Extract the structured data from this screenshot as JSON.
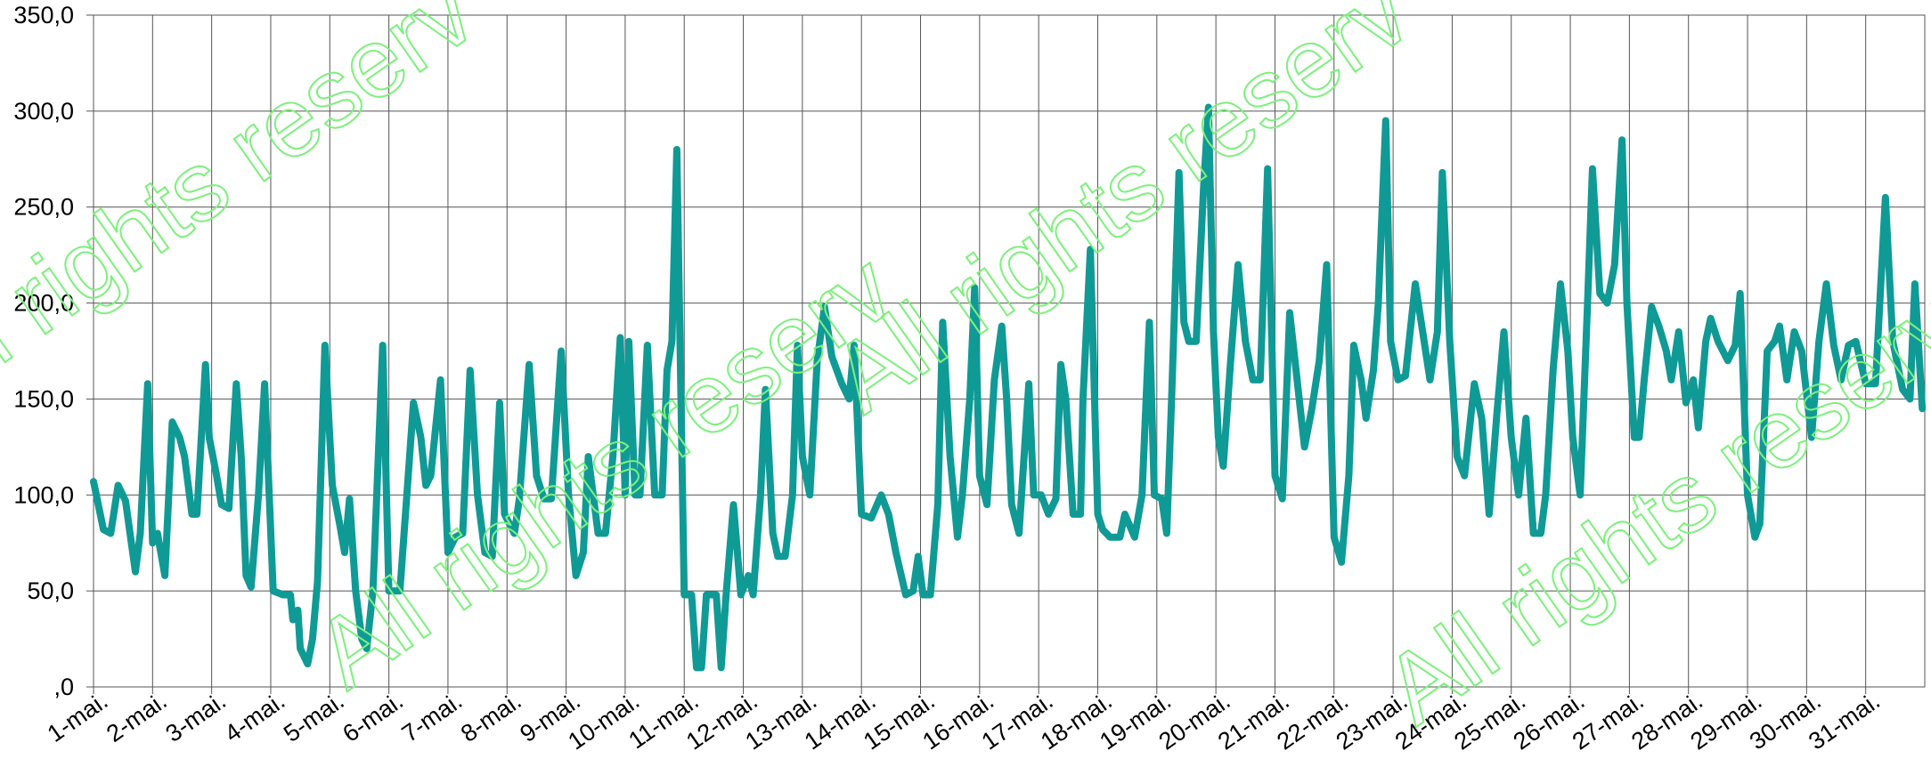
{
  "chart_data": {
    "type": "line",
    "watermark": "All rights reserv",
    "x": [
      0,
      4,
      7,
      10,
      13,
      17,
      19,
      22,
      24,
      26,
      29,
      32,
      35,
      37,
      40,
      42,
      45.5,
      47,
      50,
      52,
      55,
      58,
      60,
      62,
      64,
      67,
      69.5,
      73,
      77,
      80,
      81,
      83,
      84,
      87,
      89,
      91,
      94,
      97,
      100,
      102,
      104,
      106.5,
      109,
      111,
      113.5,
      117.5,
      120,
      124.5,
      127,
      130,
      133,
      135,
      137,
      141,
      144,
      147,
      150,
      153,
      156,
      159,
      162,
      165,
      167,
      171,
      173,
      177,
      180,
      183,
      186,
      190,
      193,
      196,
      199,
      201,
      205,
      208,
      211,
      214,
      216,
      217.5,
      220,
      222,
      225,
      228,
      231,
      233,
      235,
      237,
      240,
      243,
      245,
      247,
      249,
      253,
      255,
      257,
      260,
      263,
      266,
      268,
      271,
      273,
      276,
      278,
      281,
      284,
      286,
      288,
      291,
      294,
      297,
      300,
      304,
      307,
      309,
      312,
      316,
      320,
      323,
      326,
      330,
      333,
      335,
      337,
      340,
      343,
      345,
      348,
      351,
      353,
      356,
      358,
      360,
      363,
      366,
      369,
      371,
      373,
      376,
      380,
      382,
      385,
      388,
      391,
      393,
      395,
      398,
      401,
      402,
      405,
      408,
      410,
      413,
      417,
      419,
      423,
      426,
      429,
      431,
      434,
      436,
      438,
      441,
      443,
      445,
      448,
      451,
      453,
      455,
      457,
      459,
      462,
      465,
      468,
      471,
      474,
      477,
      480,
      483,
      486,
      489,
      492,
      495,
      498,
      501,
      504,
      507,
      510,
      512,
      515,
      517,
      520,
      522,
      525,
      527,
      530,
      533,
      537,
      540,
      543,
      546,
      548,
      551,
      554,
      557,
      561,
      564,
      567,
      570,
      573,
      576,
      579,
      582,
      585,
      588,
      590,
      593,
      596,
      599,
      601,
      604,
      607,
      609,
      612,
      615,
      618,
      621,
      623,
      626,
      628,
      630,
      633,
      636,
      639,
      641,
      644,
      647,
      650,
      652,
      655,
      657,
      660,
      664,
      667,
      669,
      672,
      675,
      677,
      680,
      683,
      685,
      688,
      691,
      694,
      698,
      701,
      704,
      707,
      710,
      713,
      716,
      720,
      724,
      728,
      731,
      735,
      738,
      740,
      743
    ],
    "series": [
      {
        "color": "#109a96",
        "values": [
          107,
          82,
          80,
          105,
          97,
          60,
          80,
          158,
          75,
          80,
          58,
          138,
          130,
          120,
          90,
          90,
          168,
          130,
          110,
          95,
          93,
          158,
          120,
          58,
          52,
          100,
          158,
          50,
          48,
          48,
          35,
          40,
          20,
          12,
          25,
          55,
          178,
          105,
          85,
          70,
          98,
          50,
          25,
          20,
          50,
          178,
          50,
          50,
          95,
          148,
          130,
          105,
          110,
          160,
          70,
          78,
          80,
          165,
          100,
          70,
          68,
          148,
          90,
          80,
          98,
          168,
          110,
          98,
          98,
          175,
          100,
          58,
          70,
          120,
          80,
          80,
          120,
          182,
          100,
          180,
          100,
          100,
          178,
          100,
          100,
          165,
          180,
          280,
          48,
          48,
          10,
          10,
          48,
          48,
          10,
          48,
          95,
          48,
          58,
          48,
          100,
          155,
          80,
          68,
          68,
          100,
          178,
          120,
          100,
          170,
          198,
          172,
          158,
          150,
          178,
          90,
          88,
          100,
          90,
          70,
          48,
          50,
          68,
          48,
          48,
          95,
          190,
          120,
          78,
          100,
          150,
          208,
          110,
          95,
          160,
          188,
          150,
          95,
          80,
          158,
          100,
          100,
          90,
          98,
          168,
          150,
          90,
          90,
          150,
          228,
          90,
          82,
          78,
          78,
          90,
          78,
          100,
          190,
          100,
          98,
          80,
          150,
          268,
          190,
          180,
          180,
          260,
          302,
          185,
          130,
          115,
          170,
          220,
          180,
          160,
          160,
          270,
          110,
          98,
          195,
          160,
          125,
          145,
          170,
          220,
          78,
          65,
          110,
          178,
          160,
          140,
          165,
          200,
          295,
          180,
          160,
          162,
          210,
          185,
          160,
          185,
          268,
          180,
          120,
          110,
          158,
          140,
          90,
          140,
          185,
          130,
          100,
          140,
          80,
          80,
          100,
          165,
          210,
          175,
          130,
          100,
          200,
          270,
          205,
          200,
          220,
          285,
          200,
          130,
          130,
          160,
          198,
          188,
          175,
          160,
          185,
          148,
          160,
          135,
          180,
          192,
          180,
          170,
          178,
          205,
          100,
          78,
          85,
          175,
          180,
          188,
          160,
          185,
          175,
          130,
          180,
          210,
          178,
          160,
          178,
          180,
          158,
          158,
          255,
          180,
          155,
          150,
          210,
          145
        ]
      }
    ],
    "xlim": [
      0,
      744
    ],
    "xticks": [
      {
        "value": 0,
        "label": "1-mai."
      },
      {
        "value": 24,
        "label": "2-mai."
      },
      {
        "value": 48,
        "label": "3-mai."
      },
      {
        "value": 72,
        "label": "4-mai."
      },
      {
        "value": 96,
        "label": "5-mai."
      },
      {
        "value": 120,
        "label": "6-mai."
      },
      {
        "value": 144,
        "label": "7-mai."
      },
      {
        "value": 168,
        "label": "8-mai."
      },
      {
        "value": 192,
        "label": "9-mai."
      },
      {
        "value": 216,
        "label": "10-mai."
      },
      {
        "value": 240,
        "label": "11-mai."
      },
      {
        "value": 264,
        "label": "12-mai."
      },
      {
        "value": 288,
        "label": "13-mai."
      },
      {
        "value": 312,
        "label": "14-mai."
      },
      {
        "value": 336,
        "label": "15-mai."
      },
      {
        "value": 360,
        "label": "16-mai."
      },
      {
        "value": 384,
        "label": "17-mai."
      },
      {
        "value": 408,
        "label": "18-mai."
      },
      {
        "value": 432,
        "label": "19-mai."
      },
      {
        "value": 456,
        "label": "20-mai."
      },
      {
        "value": 480,
        "label": "21-mai."
      },
      {
        "value": 504,
        "label": "22-mai."
      },
      {
        "value": 528,
        "label": "23-mai."
      },
      {
        "value": 552,
        "label": "24-mai."
      },
      {
        "value": 576,
        "label": "25-mai."
      },
      {
        "value": 600,
        "label": "26-mai."
      },
      {
        "value": 624,
        "label": "27-mai."
      },
      {
        "value": 648,
        "label": "28-mai."
      },
      {
        "value": 672,
        "label": "29-mai."
      },
      {
        "value": 696,
        "label": "30-mai."
      },
      {
        "value": 720,
        "label": "31-mai."
      }
    ],
    "ylim": [
      0,
      350
    ],
    "yticks": [
      {
        "value": 0,
        "label": ",0"
      },
      {
        "value": 50,
        "label": "50,0"
      },
      {
        "value": 100,
        "label": "100,0"
      },
      {
        "value": 150,
        "label": "150,0"
      },
      {
        "value": 200,
        "label": "200,0"
      },
      {
        "value": 250,
        "label": "250,0"
      },
      {
        "value": 300,
        "label": "300,0"
      },
      {
        "value": 350,
        "label": "350,0"
      }
    ],
    "grid": true
  }
}
